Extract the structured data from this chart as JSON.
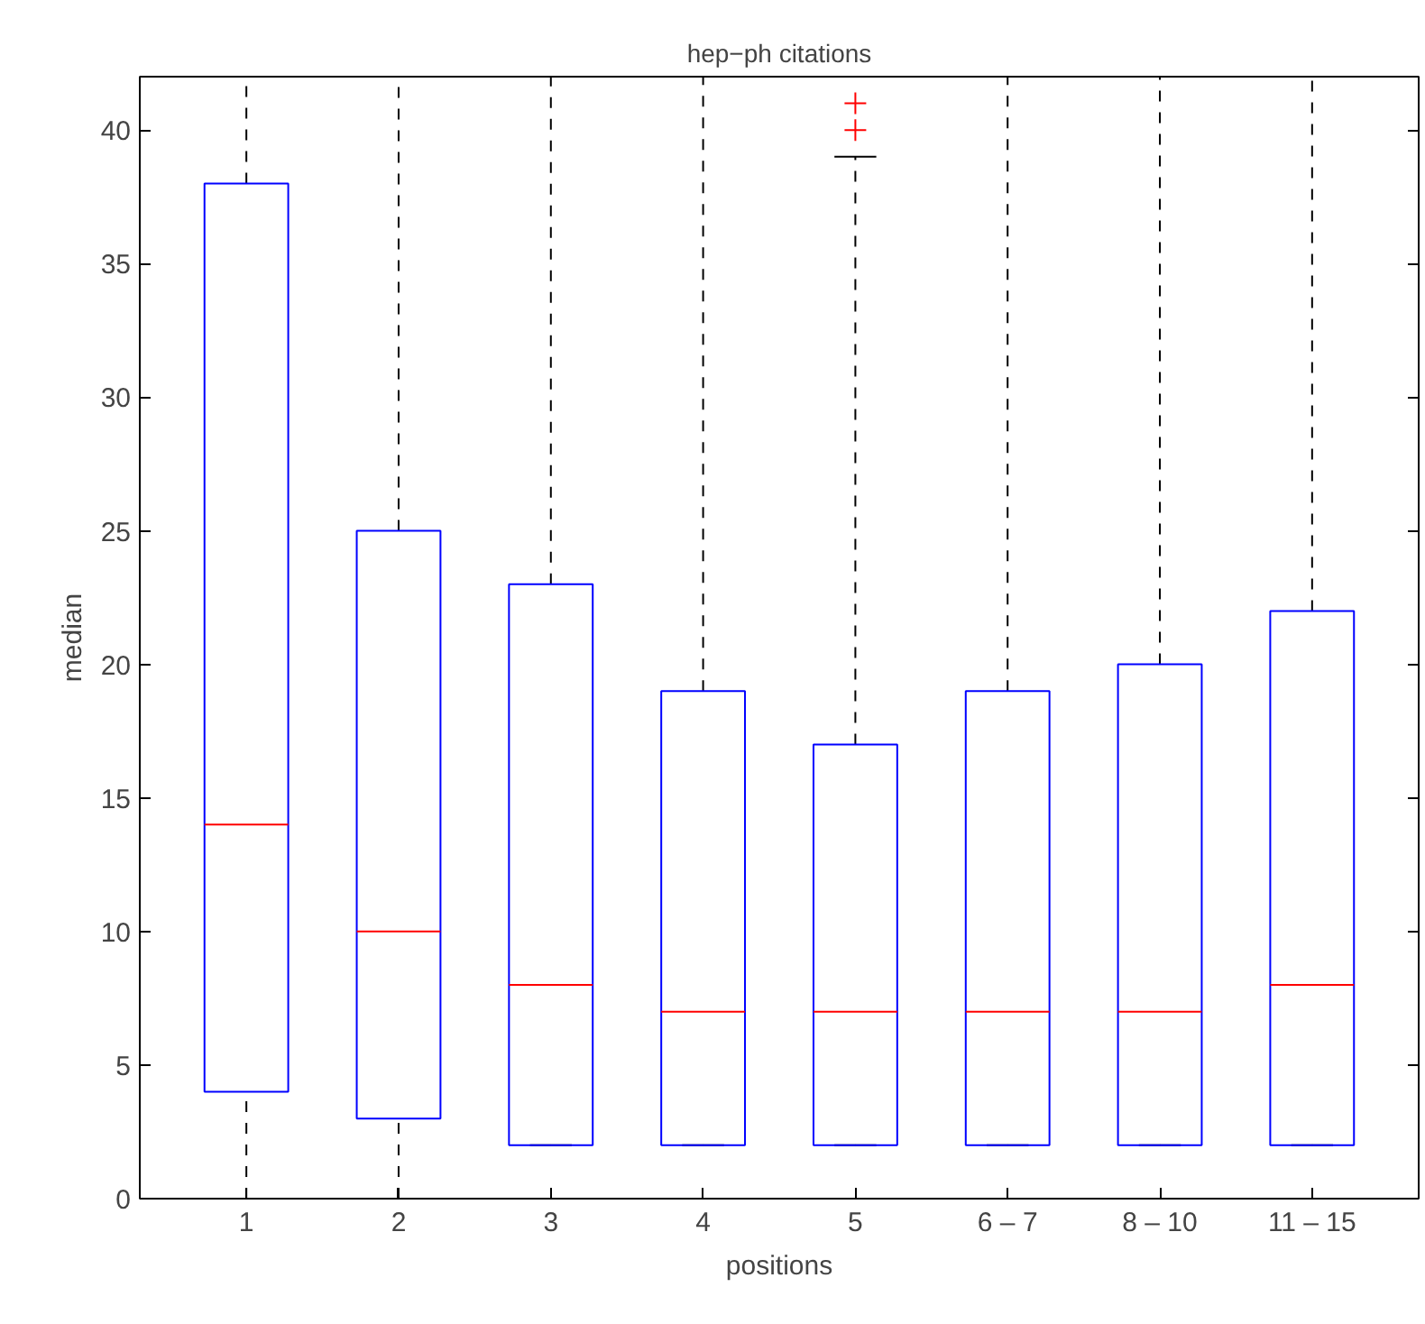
{
  "chart_data": {
    "type": "box",
    "title": "hep−ph citations",
    "xlabel": "positions",
    "ylabel": "median",
    "categories": [
      "1",
      "2",
      "3",
      "4",
      "5",
      "6 – 7",
      "8 – 10",
      "11 – 15"
    ],
    "ylim": [
      0,
      42
    ],
    "yticks": [
      0,
      5,
      10,
      15,
      20,
      25,
      30,
      35,
      40
    ],
    "grid": false,
    "series": [
      {
        "color": "#0000ff",
        "boxes": [
          {
            "low": 0,
            "q1": 4,
            "median": 14,
            "q3": 38,
            "high": 42
          },
          {
            "low": 0,
            "q1": 3,
            "median": 10,
            "q3": 25,
            "high": 42
          },
          {
            "low": 2,
            "q1": 2,
            "median": 8,
            "q3": 23,
            "high": 42
          },
          {
            "low": 2,
            "q1": 2,
            "median": 7,
            "q3": 19,
            "high": 42
          },
          {
            "low": 2,
            "q1": 2,
            "median": 7,
            "q3": 17,
            "high": 39,
            "outliers": [
              40,
              41
            ]
          },
          {
            "low": 2,
            "q1": 2,
            "median": 7,
            "q3": 19,
            "high": 42
          },
          {
            "low": 2,
            "q1": 2,
            "median": 7,
            "q3": 20,
            "high": 42
          },
          {
            "low": 2,
            "q1": 2,
            "median": 8,
            "q3": 22,
            "high": 42
          }
        ]
      }
    ]
  }
}
